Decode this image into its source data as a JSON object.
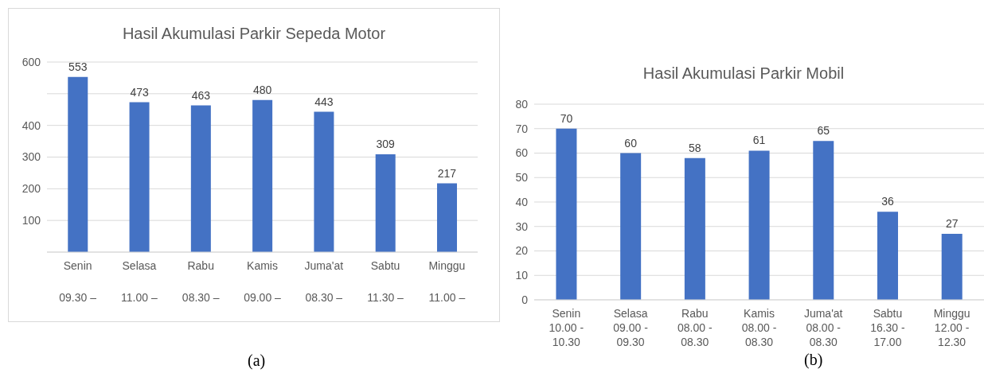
{
  "chart_data": [
    {
      "type": "bar",
      "title": "Hasil Akumulasi Parkir Sepeda Motor",
      "categories": [
        "Senin\n\n09.30 –",
        "Selasa\n\n11.00 –",
        "Rabu\n\n08.30 –",
        "Kamis\n\n09.00 –",
        "Juma'at\n\n08.30 –",
        "Sabtu\n\n11.30 –",
        "Minggu\n\n11.00 –"
      ],
      "values": [
        553,
        473,
        463,
        480,
        443,
        309,
        217
      ],
      "color": "#4472c4",
      "ylim": [
        0,
        600
      ],
      "yticks": [
        {
          "value": 0,
          "label": null
        },
        100,
        200,
        300,
        400,
        {
          "value": 500,
          "label": null
        },
        600
      ],
      "grid": "y",
      "data_labels": true,
      "annotations": [
        "(a)"
      ]
    },
    {
      "type": "bar",
      "title": "Hasil Akumulasi Parkir Mobil",
      "categories": [
        "Senin\n10.00 -\n10.30",
        "Selasa\n09.00 -\n09.30",
        "Rabu\n08.00 -\n08.30",
        "Kamis\n08.00 -\n08.30",
        "Juma'at\n08.00 -\n08.30",
        "Sabtu\n16.30 -\n17.00",
        "Minggu\n12.00 -\n12.30"
      ],
      "values": [
        70,
        60,
        58,
        61,
        65,
        36,
        27
      ],
      "color": "#4472c4",
      "ylim": [
        0,
        80
      ],
      "yticks": [
        0,
        10,
        20,
        30,
        40,
        50,
        60,
        70,
        80
      ],
      "grid": "y",
      "data_labels": true,
      "annotations": [
        "(b)"
      ]
    }
  ]
}
